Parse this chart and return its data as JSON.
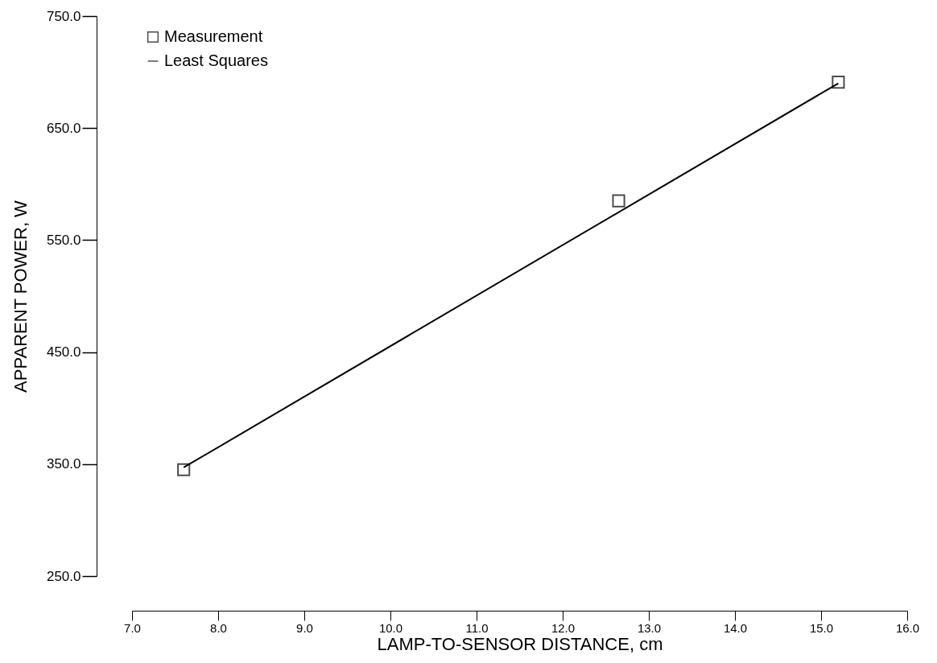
{
  "chart_data": {
    "type": "scatter",
    "xlabel": "LAMP-TO-SENSOR DISTANCE, cm",
    "ylabel": "APPARENT POWER, W",
    "xlim": [
      7,
      16
    ],
    "ylim": [
      250,
      750
    ],
    "xticks": [
      {
        "value": 7,
        "label": "7.0"
      },
      {
        "value": 8,
        "label": "8.0"
      },
      {
        "value": 9,
        "label": "9.0"
      },
      {
        "value": 10,
        "label": "10.0"
      },
      {
        "value": 11,
        "label": "11.0"
      },
      {
        "value": 12,
        "label": "12.0"
      },
      {
        "value": 13,
        "label": "13.0"
      },
      {
        "value": 14,
        "label": "14.0"
      },
      {
        "value": 15,
        "label": "15.0"
      },
      {
        "value": 16,
        "label": "16.0"
      }
    ],
    "yticks": [
      {
        "value": 250,
        "label": "250.0"
      },
      {
        "value": 350,
        "label": "350.0"
      },
      {
        "value": 450,
        "label": "450.0"
      },
      {
        "value": 550,
        "label": "550.0"
      },
      {
        "value": 650,
        "label": "650.0"
      },
      {
        "value": 750,
        "label": "750.0"
      }
    ],
    "grid": false,
    "legend": "top left",
    "series": [
      {
        "name": "Measurement",
        "type": "scatter",
        "marker": "square",
        "color": "#000000",
        "x": [
          7.6,
          12.65,
          15.2
        ],
        "values": [
          345,
          585,
          691
        ]
      },
      {
        "name": "Least Squares",
        "type": "line",
        "marker": "none",
        "color": "#000000",
        "line_style": "solid",
        "x": [
          7.6,
          15.2
        ],
        "values": [
          347,
          690
        ]
      }
    ]
  }
}
